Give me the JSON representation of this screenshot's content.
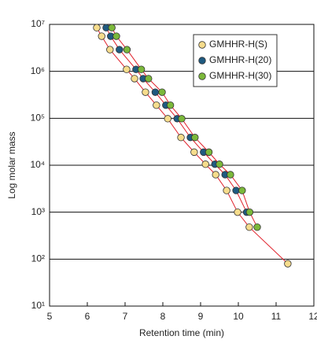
{
  "chart_data": {
    "type": "scatter",
    "x_label": "Retention time (min)",
    "y_label": "Log molar mass",
    "xlim": [
      5,
      12
    ],
    "xticks": [
      5,
      6,
      7,
      8,
      9,
      10,
      11,
      12
    ],
    "ylim": [
      10,
      10000000
    ],
    "yscale": "log",
    "yticks": [
      {
        "value": 10,
        "label": "10¹"
      },
      {
        "value": 100,
        "label": "10²"
      },
      {
        "value": 1000,
        "label": "10³"
      },
      {
        "value": 10000,
        "label": "10⁴"
      },
      {
        "value": 100000,
        "label": "10⁵"
      },
      {
        "value": 1000000,
        "label": "10⁶"
      },
      {
        "value": 10000000,
        "label": "10⁷"
      }
    ],
    "grid": true,
    "line_color": "#e0202a",
    "legend": "upper right",
    "series": [
      {
        "name": "GMHHR-H(S)",
        "color": "#f6dc8c",
        "x": [
          6.25,
          6.38,
          6.6,
          7.04,
          7.25,
          7.54,
          7.83,
          8.13,
          8.48,
          8.83,
          9.13,
          9.4,
          9.69,
          9.98,
          10.29,
          11.31
        ],
        "values": [
          8500000,
          5600000,
          2900000,
          1100000,
          700000,
          360000,
          190000,
          98000,
          39000,
          19000,
          10500,
          6300,
          2900,
          1000,
          480,
          80
        ]
      },
      {
        "name": "GMHHR-H(20)",
        "color": "#1f5a80",
        "x": [
          6.5,
          6.62,
          6.85,
          7.29,
          7.48,
          7.8,
          8.08,
          8.38,
          8.73,
          9.08,
          9.38,
          9.65,
          9.94,
          10.22
        ],
        "values": [
          8500000,
          5600000,
          2900000,
          1100000,
          700000,
          360000,
          190000,
          98000,
          39000,
          19000,
          10500,
          6300,
          2900,
          1000
        ]
      },
      {
        "name": "GMHHR-H(30)",
        "color": "#7bb83a",
        "x": [
          6.65,
          6.77,
          7.05,
          7.43,
          7.62,
          7.98,
          8.2,
          8.5,
          8.85,
          9.22,
          9.5,
          9.79,
          10.1,
          10.3,
          10.5
        ],
        "values": [
          8500000,
          5600000,
          2900000,
          1100000,
          700000,
          360000,
          190000,
          98000,
          39000,
          19000,
          10500,
          6300,
          2900,
          1000,
          480
        ]
      }
    ]
  }
}
